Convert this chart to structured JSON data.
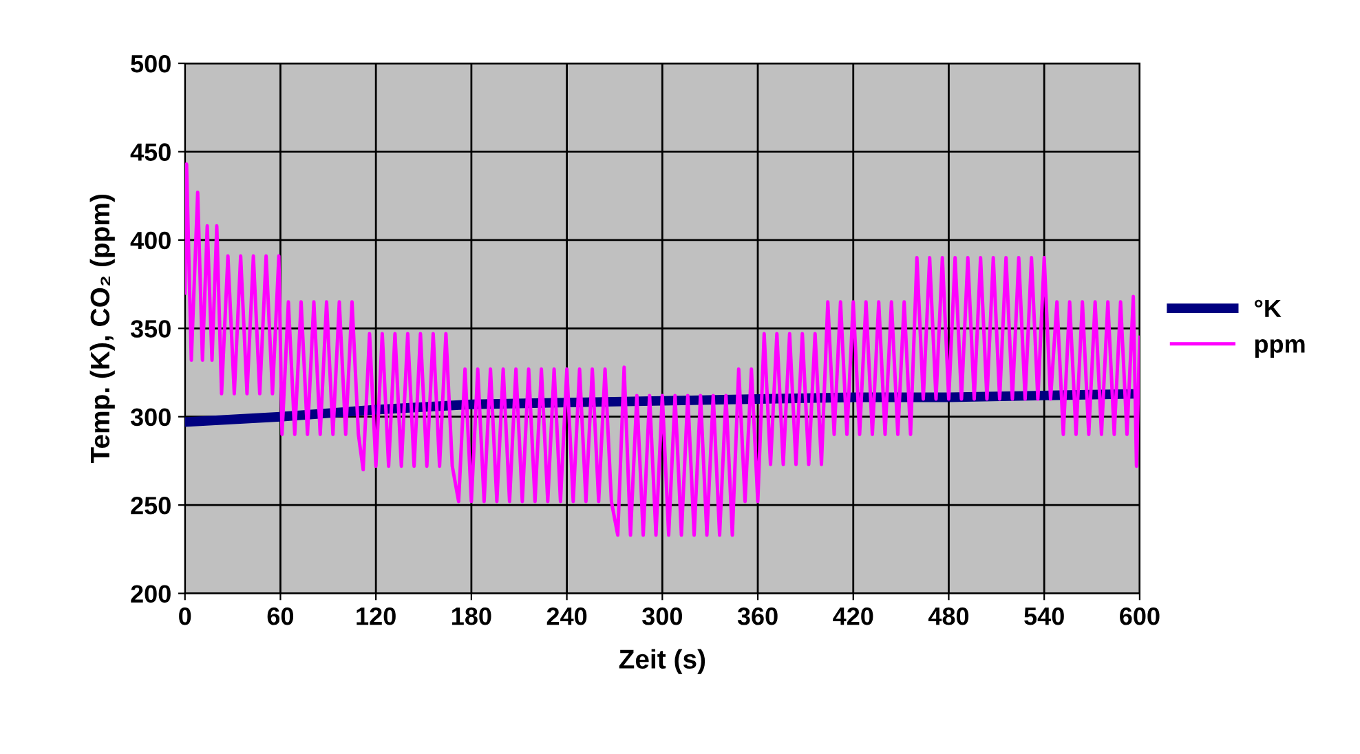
{
  "chart_data": {
    "type": "line",
    "xlabel": "Zeit (s)",
    "ylabel": "Temp. (K), CO₂ (ppm)",
    "xlim": [
      0,
      600
    ],
    "xticks": [
      0,
      60,
      120,
      180,
      240,
      300,
      360,
      420,
      480,
      540,
      600
    ],
    "ylim": [
      200,
      500
    ],
    "yticks": [
      200,
      250,
      300,
      350,
      400,
      450,
      500
    ],
    "grid": true,
    "legend": "right",
    "marker": "none",
    "line_style": "solid",
    "series": [
      {
        "name": "°K",
        "color": "#000080",
        "x": [
          0,
          60,
          120,
          180,
          240,
          300,
          360,
          420,
          480,
          540,
          600
        ],
        "values": [
          297,
          300,
          304,
          307,
          308,
          309,
          310,
          311,
          311,
          312,
          313
        ]
      },
      {
        "name": "ppm",
        "color": "#ff00ff",
        "x": [
          0,
          1,
          4,
          8,
          11,
          14,
          17,
          20,
          23,
          27,
          31,
          35,
          39,
          43,
          47,
          51,
          55,
          59,
          61,
          65,
          69,
          73,
          77,
          81,
          85,
          89,
          93,
          97,
          101,
          105,
          109,
          112,
          116,
          120,
          124,
          128,
          132,
          136,
          140,
          144,
          148,
          152,
          156,
          160,
          164,
          168,
          172,
          176,
          180,
          184,
          188,
          192,
          196,
          200,
          204,
          208,
          212,
          216,
          220,
          224,
          228,
          232,
          236,
          240,
          244,
          248,
          252,
          256,
          260,
          264,
          268,
          272,
          276,
          280,
          284,
          288,
          292,
          296,
          300,
          304,
          308,
          312,
          316,
          320,
          324,
          328,
          332,
          336,
          340,
          344,
          348,
          352,
          356,
          360,
          364,
          368,
          372,
          376,
          380,
          384,
          388,
          392,
          396,
          400,
          404,
          408,
          412,
          416,
          420,
          424,
          428,
          432,
          436,
          440,
          444,
          448,
          452,
          456,
          460,
          464,
          468,
          472,
          476,
          480,
          484,
          488,
          492,
          496,
          500,
          504,
          508,
          512,
          516,
          520,
          524,
          528,
          532,
          536,
          540,
          544,
          548,
          552,
          556,
          560,
          564,
          568,
          572,
          576,
          580,
          584,
          588,
          592,
          596,
          598,
          600
        ],
        "values": [
          370,
          443,
          332,
          427,
          332,
          408,
          332,
          408,
          313,
          391,
          313,
          391,
          313,
          391,
          313,
          391,
          313,
          391,
          290,
          365,
          290,
          365,
          290,
          365,
          290,
          365,
          290,
          365,
          290,
          365,
          290,
          270,
          347,
          272,
          347,
          272,
          347,
          272,
          347,
          272,
          347,
          272,
          347,
          272,
          347,
          272,
          252,
          327,
          252,
          327,
          252,
          327,
          252,
          327,
          252,
          327,
          252,
          327,
          252,
          327,
          252,
          327,
          252,
          327,
          252,
          327,
          252,
          327,
          252,
          327,
          252,
          233,
          328,
          233,
          312,
          233,
          312,
          233,
          312,
          233,
          312,
          233,
          312,
          233,
          312,
          233,
          312,
          233,
          312,
          233,
          327,
          252,
          327,
          252,
          347,
          273,
          347,
          273,
          347,
          273,
          347,
          273,
          347,
          273,
          365,
          290,
          365,
          290,
          365,
          290,
          365,
          290,
          365,
          290,
          365,
          290,
          365,
          290,
          390,
          310,
          390,
          310,
          390,
          310,
          390,
          310,
          390,
          310,
          390,
          310,
          390,
          310,
          390,
          310,
          390,
          310,
          390,
          310,
          390,
          310,
          365,
          290,
          365,
          290,
          365,
          290,
          365,
          290,
          365,
          290,
          365,
          290,
          368,
          272,
          345
        ]
      }
    ]
  }
}
